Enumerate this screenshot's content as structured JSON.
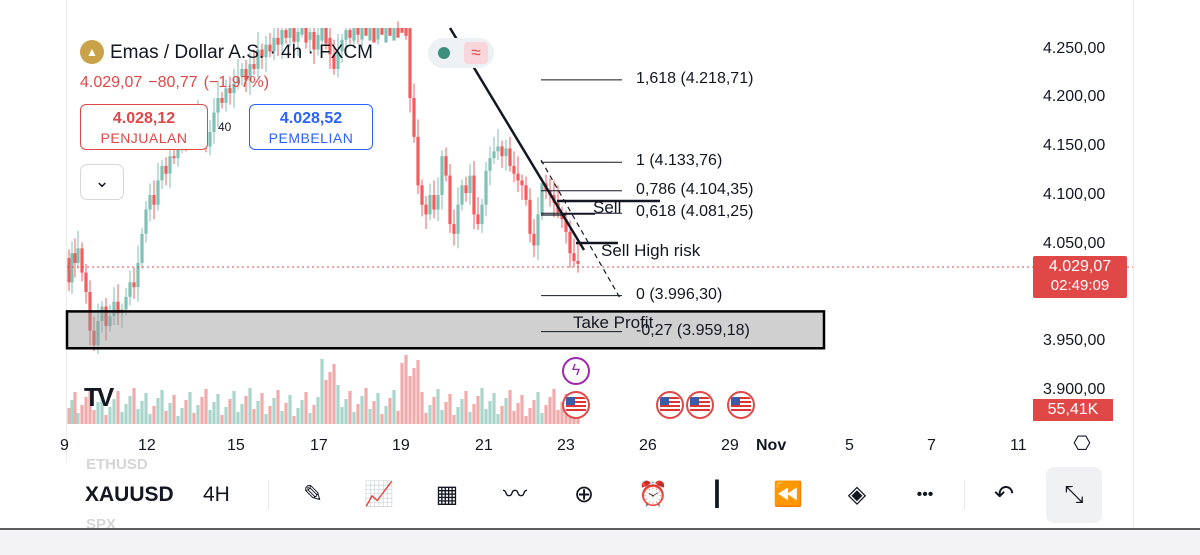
{
  "header": {
    "title": "Emas / Dollar A.S. · 4h · FXCM",
    "gold_icon_glyph": "▲",
    "last_price": "4.029,07",
    "change": "−80,77",
    "change_pct": "(−1,97%)",
    "sell": {
      "price": "4.028,12",
      "label": "PENJUALAN"
    },
    "buy": {
      "price": "4.028,52",
      "label": "PEMBELIAN"
    },
    "spread": "40",
    "collapse_glyph": "⌄",
    "status_wave_glyph": "≈",
    "icon_names": [
      "gold-icon",
      "chevron-down-icon",
      "market-status-icon",
      "wave-icon"
    ]
  },
  "price_axis": {
    "labels": [
      "4.250,00",
      "4.200,00",
      "4.150,00",
      "4.100,00",
      "4.050,00",
      "3.950,00",
      "3.900,00"
    ],
    "current_price": "4.029,07",
    "countdown": "02:49:09",
    "volume": "55,41K"
  },
  "time_axis": {
    "labels": [
      "9",
      "12",
      "15",
      "17",
      "19",
      "21",
      "23",
      "26",
      "29",
      "Nov",
      "5",
      "7",
      "11"
    ],
    "settings_glyph": "⎔"
  },
  "annotations": {
    "fib_levels": [
      {
        "label": "1,618 (4.218,71)",
        "price": 4218.71
      },
      {
        "label": "1 (4.133,76)",
        "price": 4133.76
      },
      {
        "label": "0,786 (4.104,35)",
        "price": 4104.35
      },
      {
        "label": "0,618 (4.081,25)",
        "price": 4081.25
      },
      {
        "label": "0 (3.996,30)",
        "price": 3996.3
      },
      {
        "label": "-0,27 (3.959,18)",
        "price": 3959.18
      }
    ],
    "notes": [
      "Sell",
      "Sell High risk",
      "Take Profit"
    ],
    "zone": {
      "from": 3942,
      "to": 3980
    }
  },
  "events": {
    "flash_glyph": "ϟ",
    "icon_names": [
      "lightning-icon",
      "us-flag-icon"
    ]
  },
  "watermark": "TV",
  "toolbar": {
    "symbol": "XAUUSD",
    "interval": "4H",
    "ghost_above": "ETHUSD",
    "ghost_below": "SPX",
    "icons": [
      {
        "name": "draw-pen-icon",
        "glyph": "✎"
      },
      {
        "name": "indicators-icon",
        "glyph": "📈"
      },
      {
        "name": "layouts-icon",
        "glyph": "▦"
      },
      {
        "name": "strategy-icon",
        "glyph": "〰"
      },
      {
        "name": "add-icon",
        "glyph": "⊕"
      },
      {
        "name": "alarm-icon",
        "glyph": "⏰"
      },
      {
        "name": "candles-icon",
        "glyph": "┃"
      },
      {
        "name": "replay-icon",
        "glyph": "⏪"
      },
      {
        "name": "layers-icon",
        "glyph": "◈"
      },
      {
        "name": "more-icon",
        "glyph": "•••"
      },
      {
        "name": "undo-icon",
        "glyph": "↶"
      },
      {
        "name": "fullscreen-exit-icon",
        "glyph": "⤡"
      }
    ]
  },
  "colors": {
    "up": "#7fc1b5",
    "down": "#ef5d5d",
    "accent_red": "#e04848",
    "accent_blue": "#2962ff"
  }
}
